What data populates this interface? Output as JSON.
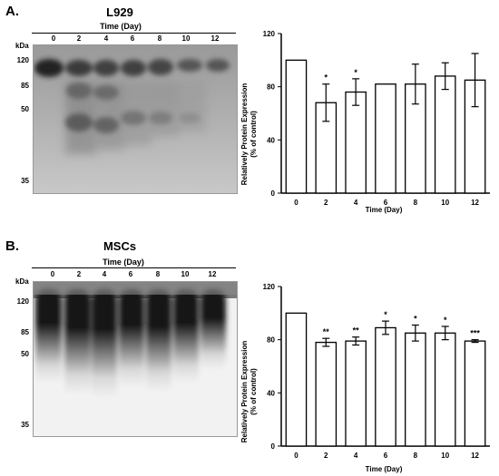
{
  "panels": [
    {
      "letter": "A.",
      "gel": {
        "title": "L929",
        "time_label": "Time (Day)",
        "lanes": [
          "0",
          "2",
          "4",
          "6",
          "8",
          "10",
          "12"
        ],
        "kda_label": "kDa",
        "markers": [
          "120",
          "85",
          "50",
          "35"
        ]
      },
      "chart_data": {
        "type": "bar",
        "categories": [
          "0",
          "2",
          "4",
          "6",
          "8",
          "10",
          "12"
        ],
        "values": [
          100,
          68,
          76,
          82,
          82,
          88,
          85
        ],
        "errors": [
          0,
          14,
          10,
          0,
          15,
          10,
          20
        ],
        "significance": [
          "",
          "*",
          "*",
          "",
          "",
          "",
          ""
        ],
        "xlabel": "Time (Day)",
        "ylabel": "Relatively Protein Expression",
        "ylabel2": "(% of control)",
        "ylim": [
          0,
          120
        ],
        "yticks": [
          "0",
          "40",
          "80",
          "120"
        ],
        "bar_fill": "#ffffff",
        "bar_stroke": "#000000"
      }
    },
    {
      "letter": "B.",
      "gel": {
        "title": "MSCs",
        "time_label": "Time (Day)",
        "lanes": [
          "0",
          "2",
          "4",
          "6",
          "8",
          "10",
          "12"
        ],
        "kda_label": "kDa",
        "markers": [
          "120",
          "85",
          "50",
          "35"
        ]
      },
      "chart_data": {
        "type": "bar",
        "categories": [
          "0",
          "2",
          "4",
          "6",
          "8",
          "10",
          "12"
        ],
        "values": [
          100,
          78,
          79,
          89,
          85,
          85,
          79
        ],
        "errors": [
          0,
          3,
          3,
          5,
          6,
          5,
          1
        ],
        "significance": [
          "",
          "**",
          "**",
          "*",
          "*",
          "*",
          "***"
        ],
        "xlabel": "Time (Day)",
        "ylabel": "Relatively Protein Expression",
        "ylabel2": "(% of control)",
        "ylim": [
          0,
          120
        ],
        "yticks": [
          "0",
          "40",
          "80",
          "120"
        ],
        "bar_fill": "#ffffff",
        "bar_stroke": "#000000"
      }
    }
  ]
}
